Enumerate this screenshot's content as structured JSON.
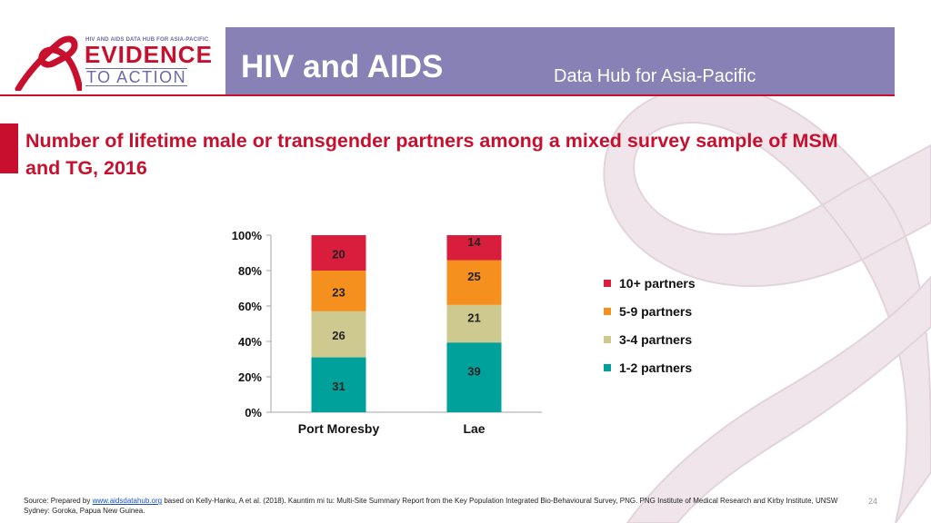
{
  "header": {
    "logo_top": "HIV AND AIDS DATA HUB FOR ASIA-PACIFIC",
    "logo_main": "EVIDENCE",
    "logo_sub": "TO ACTION",
    "title": "HIV and AIDS",
    "subtitle": "Data Hub for Asia-Pacific"
  },
  "slide": {
    "title": "Number of lifetime male or transgender partners among a mixed survey sample of MSM and TG, 2016",
    "page_number": "24"
  },
  "footer": {
    "prefix": "Source: Prepared by ",
    "link_text": "www.aidsdatahub.org",
    "suffix": " based on Kelly-Hanku, A et al. (2018). Kauntim mi tu: Multi-Site Summary Report from the Key Population Integrated Bio-Behavioural Survey, PNG. PNG Institute of Medical Research and Kirby Institute, UNSW Sydney: Goroka, Papua New Guinea."
  },
  "colors": {
    "header_bg": "#8781b5",
    "accent_red": "#c8102e"
  },
  "chart_data": {
    "type": "bar",
    "stacked": true,
    "categories": [
      "Port Moresby",
      "Lae"
    ],
    "series": [
      {
        "name": "1-2 partners",
        "values": [
          31,
          39
        ],
        "color": "#00a19a"
      },
      {
        "name": "3-4 partners",
        "values": [
          26,
          21
        ],
        "color": "#cdc98f"
      },
      {
        "name": "5-9 partners",
        "values": [
          23,
          25
        ],
        "color": "#f5901e"
      },
      {
        "name": "10+ partners",
        "values": [
          20,
          14
        ],
        "color": "#d81e3c"
      }
    ],
    "y_ticks": [
      "0%",
      "20%",
      "40%",
      "60%",
      "80%",
      "100%"
    ],
    "ylim": [
      0,
      100
    ],
    "legend_position": "right",
    "grid": false
  }
}
